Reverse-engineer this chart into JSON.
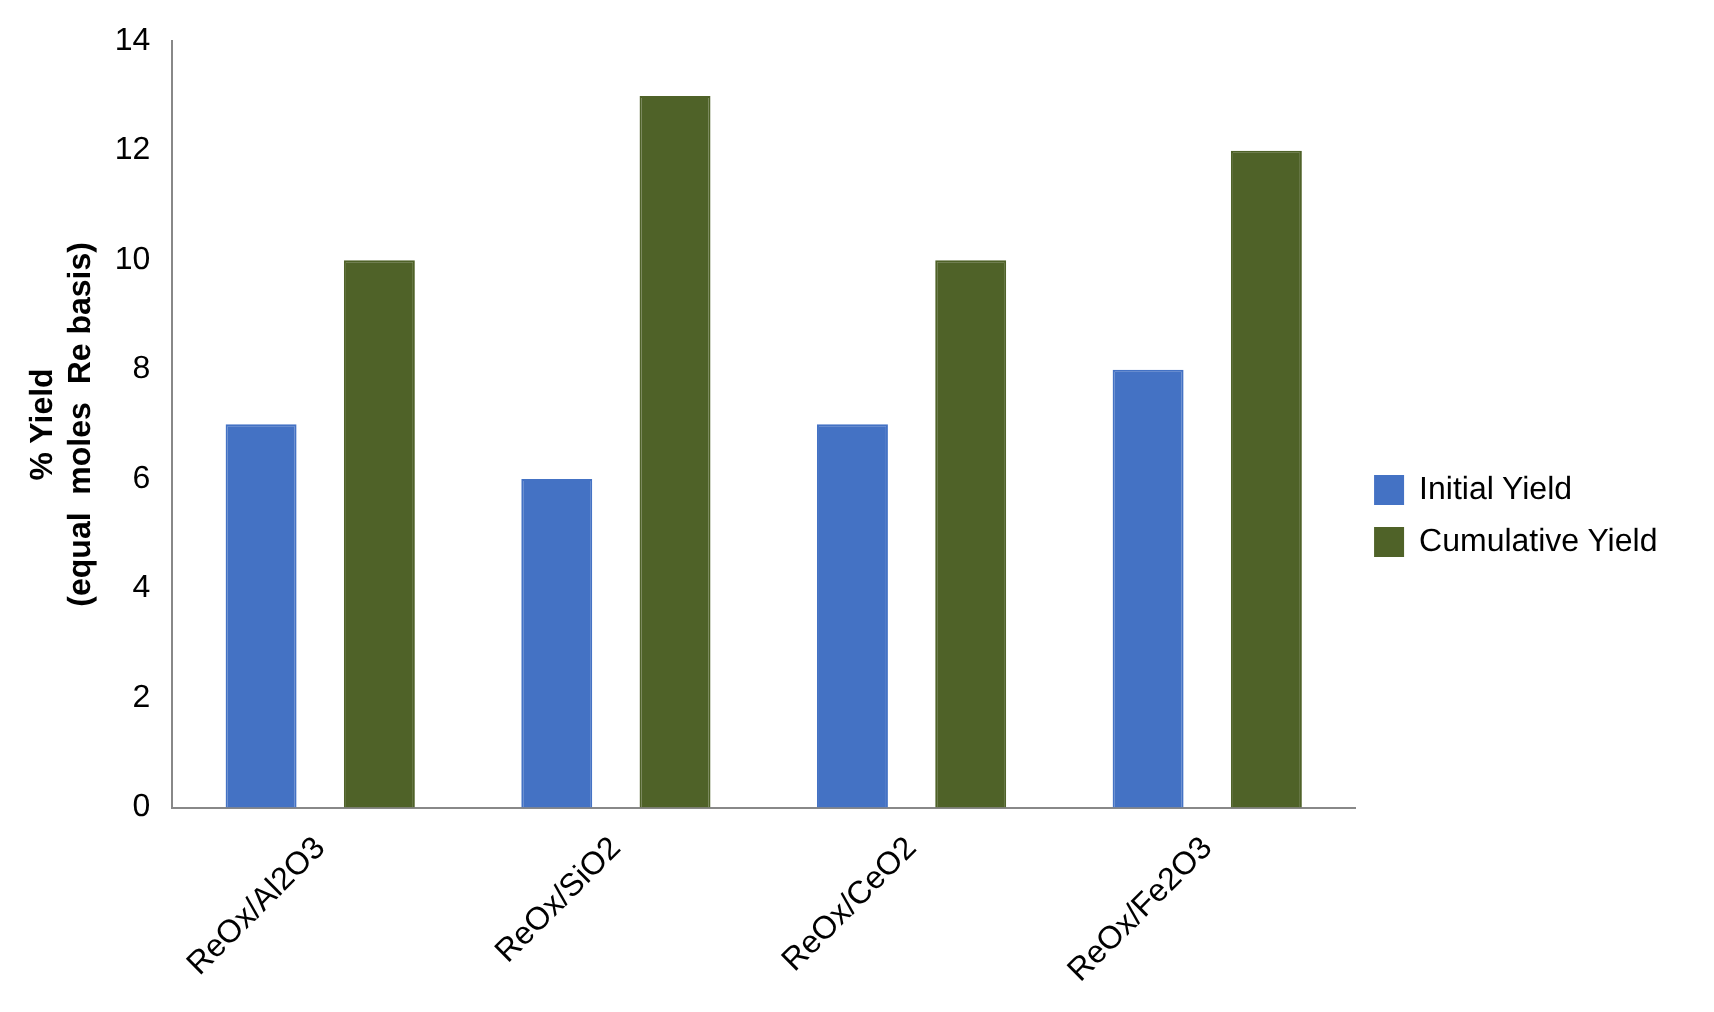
{
  "chart_data": {
    "type": "bar",
    "ylabel": "% Yield\n(equal  moles  Re basis)",
    "categories": [
      "ReOx/Al2O3",
      "ReOx/SiO2",
      "ReOx/CeO2",
      "ReOx/Fe2O3"
    ],
    "series": [
      {
        "name": "Initial Yield",
        "color": "#4472c4",
        "values": [
          7,
          6,
          7,
          8
        ]
      },
      {
        "name": "Cumulative Yield",
        "color": "#4f6228",
        "values": [
          10,
          13,
          10,
          12
        ]
      }
    ],
    "ylim": [
      0,
      14
    ],
    "yticks": [
      0,
      2,
      4,
      6,
      8,
      10,
      12,
      14
    ],
    "grid": false,
    "legend": "right"
  }
}
